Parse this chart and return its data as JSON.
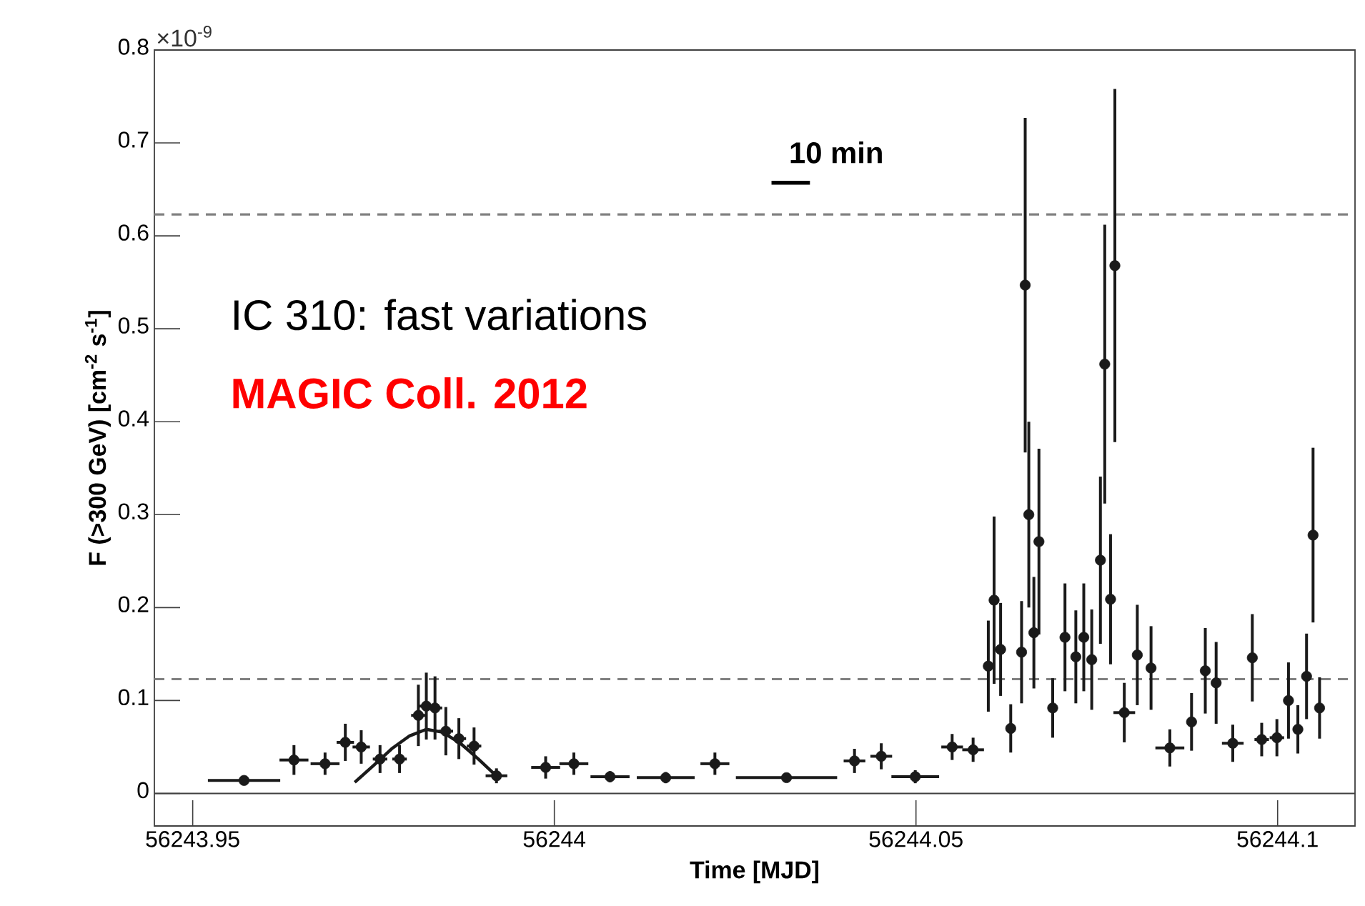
{
  "chart_data": {
    "type": "scatter",
    "xlabel": "Time [MJD]",
    "ylabel": "F (>300 GeV) [cm$^{-2}$ s$^{-1}$]",
    "annotations": [
      "×10$^{-9}$",
      "IC 310: fast variations",
      "MAGIC Coll. 2012",
      "10 min"
    ],
    "xlim": [
      56243.9447,
      56244.1107
    ],
    "ylim": [
      -0.035,
      0.8
    ],
    "xticks": [
      56243.95,
      56244,
      56244.05,
      56244.1
    ],
    "yticks": [
      0,
      0.1,
      0.2,
      0.3,
      0.4,
      0.5,
      0.6,
      0.7,
      0.8
    ],
    "ref_lines": [
      {
        "axis": "y",
        "value": 0,
        "color": "#404040",
        "line_style": "solid"
      },
      {
        "axis": "y",
        "value": 0.623,
        "color": "#808080",
        "line_style": "dashed"
      },
      {
        "axis": "y",
        "value": 0.123,
        "color": "#808080",
        "line_style": "dashed"
      }
    ],
    "series": [
      {
        "type": "scatter",
        "color": "#1a1a1a",
        "marker": "circle",
        "x": [
          56243.9571,
          56243.964,
          56243.9683,
          56243.9711,
          56243.9733,
          56243.9759,
          56243.9786,
          56243.9812,
          56243.9823,
          56243.9835,
          56243.985,
          56243.9868,
          56243.9889,
          56243.992,
          56243.9988,
          56244.0027,
          56244.0077,
          56244.0154,
          56244.0222,
          56244.0321,
          56244.0415,
          56244.0452,
          56244.0499,
          56244.055,
          56244.0579,
          56244.06,
          56244.0608,
          56244.0617,
          56244.0631,
          56244.0646,
          56244.0651,
          56244.0656,
          56244.0663,
          56244.067,
          56244.0689,
          56244.0706,
          56244.0721,
          56244.0732,
          56244.0743,
          56244.0755,
          56244.0761,
          56244.0769,
          56244.0775,
          56244.0788,
          56244.0806,
          56244.0825,
          56244.0851,
          56244.0881,
          56244.09,
          56244.0915,
          56244.0938,
          56244.0965,
          56244.0978,
          56244.0999,
          56244.1015,
          56244.1028,
          56244.104,
          56244.1049,
          56244.1058
        ],
        "values": [
          0.014,
          0.036,
          0.032,
          0.055,
          0.05,
          0.037,
          0.037,
          0.084,
          0.094,
          0.092,
          0.067,
          0.059,
          0.051,
          0.019,
          0.028,
          0.032,
          0.018,
          0.017,
          0.032,
          0.017,
          0.035,
          0.04,
          0.018,
          0.05,
          0.047,
          0.137,
          0.208,
          0.155,
          0.07,
          0.152,
          0.547,
          0.3,
          0.173,
          0.271,
          0.092,
          0.168,
          0.147,
          0.168,
          0.144,
          0.251,
          0.462,
          0.209,
          0.568,
          0.087,
          0.149,
          0.135,
          0.049,
          0.077,
          0.132,
          0.119,
          0.054,
          0.146,
          0.058,
          0.06,
          0.1,
          0.069,
          0.126,
          0.278,
          0.092
        ],
        "errors": [
          0.004,
          0.016,
          0.012,
          0.02,
          0.018,
          0.015,
          0.015,
          0.033,
          0.036,
          0.034,
          0.026,
          0.022,
          0.02,
          0.008,
          0.012,
          0.012,
          0.006,
          0.006,
          0.012,
          0.004,
          0.013,
          0.014,
          0.007,
          0.014,
          0.013,
          0.049,
          0.09,
          0.05,
          0.026,
          0.055,
          0.18,
          0.1,
          0.06,
          0.1,
          0.032,
          0.058,
          0.05,
          0.058,
          0.054,
          0.09,
          0.15,
          0.07,
          0.19,
          0.032,
          0.054,
          0.045,
          0.02,
          0.031,
          0.046,
          0.044,
          0.02,
          0.047,
          0.018,
          0.02,
          0.041,
          0.026,
          0.046,
          0.094,
          0.033
        ],
        "xerrors": [
          0.005,
          0.002,
          0.002,
          0.0012,
          0.0012,
          0.001,
          0.001,
          0.001,
          0.001,
          0.001,
          0.001,
          0.001,
          0.001,
          0.0015,
          0.002,
          0.002,
          0.0027,
          0.004,
          0.002,
          0.007,
          0.0015,
          0.0015,
          0.0033,
          0.0015,
          0.0015,
          null,
          null,
          null,
          null,
          null,
          null,
          null,
          null,
          null,
          null,
          null,
          null,
          null,
          null,
          null,
          null,
          null,
          null,
          0.0015,
          null,
          null,
          0.002,
          null,
          null,
          null,
          0.0015,
          null,
          0.001,
          0.001,
          null,
          null,
          null,
          null,
          null
        ]
      },
      {
        "type": "line",
        "color": "#1a1a1a",
        "marker": "none",
        "line_style": "solid",
        "x": [
          56243.9724,
          56243.975,
          56243.9775,
          56243.98,
          56243.9823,
          56243.9845,
          56243.987,
          56243.9895,
          56243.9925
        ],
        "values": [
          0.012,
          0.03,
          0.048,
          0.062,
          0.069,
          0.066,
          0.054,
          0.037,
          0.015
        ]
      }
    ]
  }
}
